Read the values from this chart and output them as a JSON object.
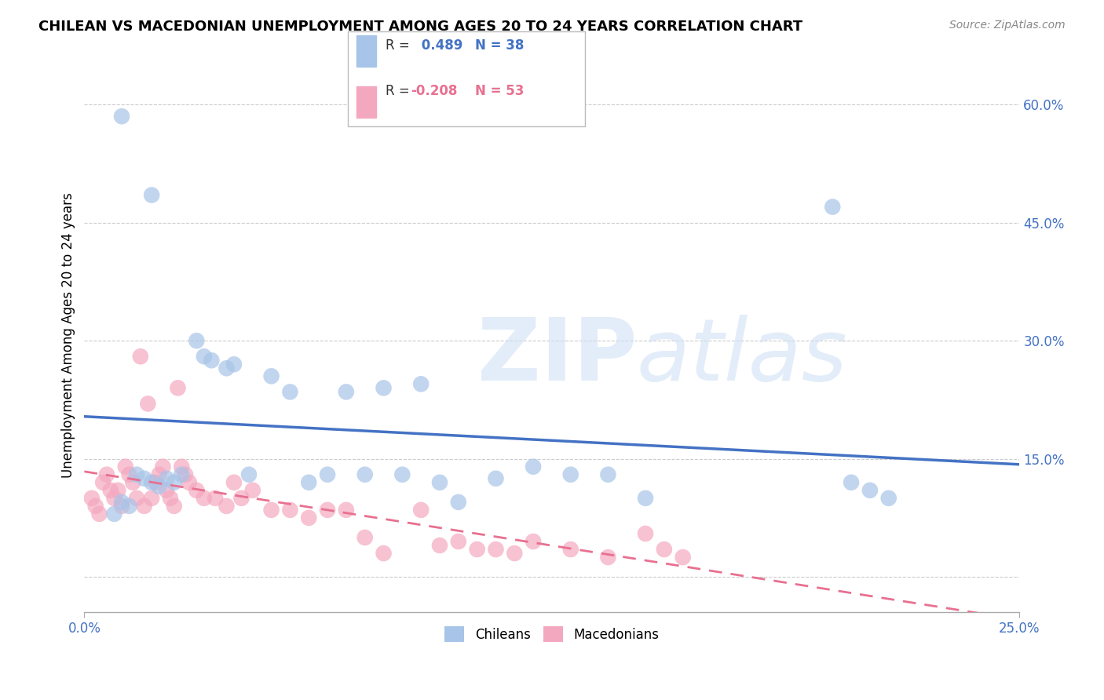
{
  "title": "CHILEAN VS MACEDONIAN UNEMPLOYMENT AMONG AGES 20 TO 24 YEARS CORRELATION CHART",
  "source": "Source: ZipAtlas.com",
  "ylabel": "Unemployment Among Ages 20 to 24 years",
  "y_ticks": [
    0.0,
    0.15,
    0.3,
    0.45,
    0.6
  ],
  "y_tick_labels": [
    "",
    "15.0%",
    "30.0%",
    "45.0%",
    "60.0%"
  ],
  "x_range": [
    0.0,
    0.25
  ],
  "y_range": [
    -0.045,
    0.66
  ],
  "chilean_R": 0.489,
  "chilean_N": 38,
  "macedonian_R": -0.208,
  "macedonian_N": 53,
  "chilean_color": "#a8c4e8",
  "macedonian_color": "#f4a8c0",
  "chilean_line_color": "#4472c4",
  "macedonian_line_color": "#e87090",
  "chilean_x": [
    0.01,
    0.018,
    0.008,
    0.01,
    0.012,
    0.014,
    0.016,
    0.018,
    0.02,
    0.022,
    0.024,
    0.026,
    0.03,
    0.032,
    0.034,
    0.038,
    0.04,
    0.044,
    0.05,
    0.055,
    0.06,
    0.065,
    0.07,
    0.075,
    0.08,
    0.085,
    0.09,
    0.095,
    0.1,
    0.11,
    0.12,
    0.13,
    0.14,
    0.15,
    0.2,
    0.205,
    0.21,
    0.215
  ],
  "chilean_y": [
    0.585,
    0.485,
    0.08,
    0.095,
    0.09,
    0.13,
    0.125,
    0.12,
    0.115,
    0.125,
    0.12,
    0.13,
    0.3,
    0.28,
    0.275,
    0.265,
    0.27,
    0.13,
    0.255,
    0.235,
    0.12,
    0.13,
    0.235,
    0.13,
    0.24,
    0.13,
    0.245,
    0.12,
    0.095,
    0.125,
    0.14,
    0.13,
    0.13,
    0.1,
    0.47,
    0.12,
    0.11,
    0.1
  ],
  "macedonian_x": [
    0.002,
    0.003,
    0.004,
    0.005,
    0.006,
    0.007,
    0.008,
    0.009,
    0.01,
    0.011,
    0.012,
    0.013,
    0.014,
    0.015,
    0.016,
    0.017,
    0.018,
    0.019,
    0.02,
    0.021,
    0.022,
    0.023,
    0.024,
    0.025,
    0.026,
    0.027,
    0.028,
    0.03,
    0.032,
    0.035,
    0.038,
    0.04,
    0.042,
    0.045,
    0.05,
    0.055,
    0.06,
    0.065,
    0.07,
    0.075,
    0.08,
    0.09,
    0.095,
    0.1,
    0.105,
    0.11,
    0.115,
    0.12,
    0.13,
    0.14,
    0.15,
    0.155,
    0.16
  ],
  "macedonian_y": [
    0.1,
    0.09,
    0.08,
    0.12,
    0.13,
    0.11,
    0.1,
    0.11,
    0.09,
    0.14,
    0.13,
    0.12,
    0.1,
    0.28,
    0.09,
    0.22,
    0.1,
    0.12,
    0.13,
    0.14,
    0.11,
    0.1,
    0.09,
    0.24,
    0.14,
    0.13,
    0.12,
    0.11,
    0.1,
    0.1,
    0.09,
    0.12,
    0.1,
    0.11,
    0.085,
    0.085,
    0.075,
    0.085,
    0.085,
    0.05,
    0.03,
    0.085,
    0.04,
    0.045,
    0.035,
    0.035,
    0.03,
    0.045,
    0.035,
    0.025,
    0.055,
    0.035,
    0.025
  ]
}
